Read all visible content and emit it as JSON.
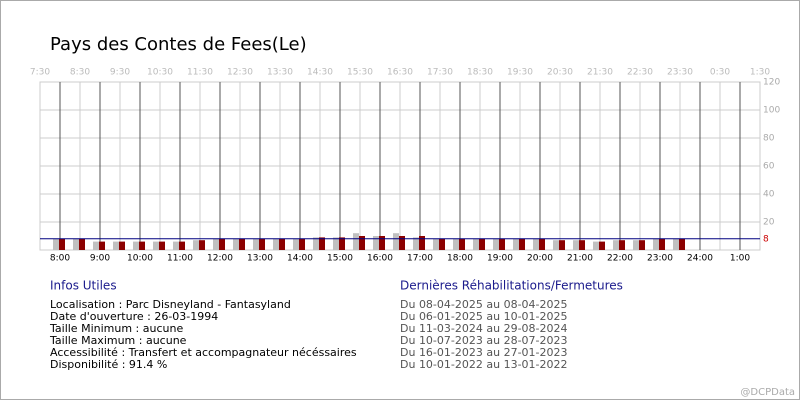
{
  "chart_data": {
    "type": "bar",
    "title": "Pays des Contes de Fees(Le)",
    "x": [
      8,
      8.5,
      9,
      9.5,
      10,
      10.5,
      11,
      11.5,
      12,
      12.5,
      13,
      13.5,
      14,
      14.5,
      15,
      15.5,
      16,
      16.5,
      17,
      17.5,
      18,
      18.5,
      19,
      19.5,
      20,
      20.5,
      21,
      21.5,
      22,
      22.5,
      23,
      23.5
    ],
    "series": [
      {
        "color": "#c0c0c0",
        "values": [
          8,
          8,
          6,
          6,
          6,
          6,
          6,
          7,
          8,
          8,
          8,
          8,
          8,
          9,
          9,
          12,
          10,
          12,
          9,
          8,
          8,
          8,
          8,
          8,
          8,
          7,
          7,
          6,
          7,
          7,
          8,
          8
        ]
      },
      {
        "color": "#8b0000",
        "values": [
          8,
          8,
          6,
          6,
          6,
          6,
          6,
          7,
          8,
          8,
          8,
          8,
          8,
          9,
          9,
          10,
          10,
          10,
          10,
          8,
          8,
          8,
          8,
          8,
          8,
          7,
          7,
          6,
          7,
          7,
          8,
          8
        ]
      }
    ],
    "xlim": [
      7.5,
      25.5
    ],
    "xticks": [
      {
        "value": 8,
        "label": "8:00"
      },
      {
        "value": 9,
        "label": "9:00"
      },
      {
        "value": 10,
        "label": "10:00"
      },
      {
        "value": 11,
        "label": "11:00"
      },
      {
        "value": 12,
        "label": "12:00"
      },
      {
        "value": 13,
        "label": "13:00"
      },
      {
        "value": 14,
        "label": "14:00"
      },
      {
        "value": 15,
        "label": "15:00"
      },
      {
        "value": 16,
        "label": "16:00"
      },
      {
        "value": 17,
        "label": "17:00"
      },
      {
        "value": 18,
        "label": "18:00"
      },
      {
        "value": 19,
        "label": "19:00"
      },
      {
        "value": 20,
        "label": "20:00"
      },
      {
        "value": 21,
        "label": "21:00"
      },
      {
        "value": 22,
        "label": "22:00"
      },
      {
        "value": 23,
        "label": "23:00"
      },
      {
        "value": 24,
        "label": "24:00"
      },
      {
        "value": 25,
        "label": "1:00"
      }
    ],
    "x2ticks": [
      {
        "value": 7.5,
        "label": "7:30"
      },
      {
        "value": 8.5,
        "label": "8:30"
      },
      {
        "value": 9.5,
        "label": "9:30"
      },
      {
        "value": 10.5,
        "label": "10:30"
      },
      {
        "value": 11.5,
        "label": "11:30"
      },
      {
        "value": 12.5,
        "label": "12:30"
      },
      {
        "value": 13.5,
        "label": "13:30"
      },
      {
        "value": 14.5,
        "label": "14:30"
      },
      {
        "value": 15.5,
        "label": "15:30"
      },
      {
        "value": 16.5,
        "label": "16:30"
      },
      {
        "value": 17.5,
        "label": "17:30"
      },
      {
        "value": 18.5,
        "label": "18:30"
      },
      {
        "value": 19.5,
        "label": "19:30"
      },
      {
        "value": 20.5,
        "label": "20:30"
      },
      {
        "value": 21.5,
        "label": "21:30"
      },
      {
        "value": 22.5,
        "label": "22:30"
      },
      {
        "value": 23.5,
        "label": "23:30"
      },
      {
        "value": 24.5,
        "label": "0:30"
      },
      {
        "value": 25.5,
        "label": "1:30"
      }
    ],
    "ylim": [
      0,
      120
    ],
    "yticks": [
      20,
      40,
      60,
      80,
      100,
      120
    ],
    "grid": true,
    "reference_line": {
      "value": 8,
      "color": "#000080",
      "label_color": "#cc0000"
    }
  },
  "info": {
    "title": "Infos Utiles",
    "lines": [
      "Localisation : Parc Disneyland - Fantasyland",
      "Date d'ouverture : 26-03-1994",
      "Taille Minimum : aucune",
      "Taille Maximum : aucune",
      "Accessibilité : Transfert et accompagnateur nécéssaires",
      "Disponibilité : 91.4 %"
    ]
  },
  "closures": {
    "title": "Dernières Réhabilitations/Fermetures",
    "lines": [
      "Du 08-04-2025 au 08-04-2025",
      "Du 06-01-2025 au 10-01-2025",
      "Du 11-03-2024 au 29-08-2024",
      "Du 10-07-2023 au 28-07-2023",
      "Du 16-01-2023 au 27-01-2023",
      "Du 10-01-2022 au 13-01-2022"
    ]
  },
  "watermark": "@DCPData"
}
